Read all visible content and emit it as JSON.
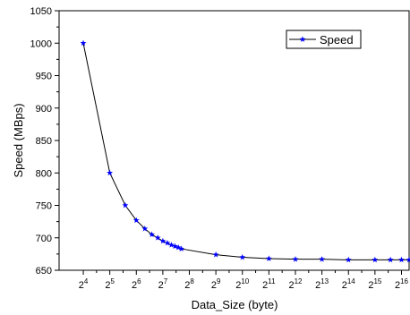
{
  "chart_data": {
    "type": "line",
    "xlabel": "Data_Size (byte)",
    "ylabel": "Speed (MBps)",
    "x_scale": "log2",
    "xlim": [
      8.5,
      80000
    ],
    "ylim": [
      650,
      1050
    ],
    "x_ticks": [
      {
        "value": 16,
        "base": "2",
        "exp": "4"
      },
      {
        "value": 32,
        "base": "2",
        "exp": "5"
      },
      {
        "value": 64,
        "base": "2",
        "exp": "6"
      },
      {
        "value": 128,
        "base": "2",
        "exp": "7"
      },
      {
        "value": 256,
        "base": "2",
        "exp": "8"
      },
      {
        "value": 512,
        "base": "2",
        "exp": "9"
      },
      {
        "value": 1024,
        "base": "2",
        "exp": "10"
      },
      {
        "value": 2048,
        "base": "2",
        "exp": "11"
      },
      {
        "value": 4096,
        "base": "2",
        "exp": "12"
      },
      {
        "value": 8192,
        "base": "2",
        "exp": "13"
      },
      {
        "value": 16384,
        "base": "2",
        "exp": "14"
      },
      {
        "value": 32768,
        "base": "2",
        "exp": "15"
      },
      {
        "value": 65536,
        "base": "2",
        "exp": "16"
      }
    ],
    "y_ticks": [
      650,
      700,
      750,
      800,
      850,
      900,
      950,
      1000,
      1050
    ],
    "grid": false,
    "legend": {
      "position": "top-right"
    },
    "series": [
      {
        "name": "Speed",
        "color": "#0000ff",
        "line_color": "#000000",
        "marker": "star",
        "points": [
          {
            "x": 16,
            "y": 1000
          },
          {
            "x": 32,
            "y": 800
          },
          {
            "x": 48,
            "y": 750
          },
          {
            "x": 64,
            "y": 727
          },
          {
            "x": 80,
            "y": 714
          },
          {
            "x": 96,
            "y": 705
          },
          {
            "x": 112,
            "y": 700
          },
          {
            "x": 128,
            "y": 695
          },
          {
            "x": 144,
            "y": 692
          },
          {
            "x": 160,
            "y": 689
          },
          {
            "x": 176,
            "y": 687
          },
          {
            "x": 192,
            "y": 685
          },
          {
            "x": 208,
            "y": 683
          },
          {
            "x": 512,
            "y": 674
          },
          {
            "x": 1024,
            "y": 670
          },
          {
            "x": 2048,
            "y": 668
          },
          {
            "x": 4096,
            "y": 667
          },
          {
            "x": 8192,
            "y": 667
          },
          {
            "x": 16384,
            "y": 666
          },
          {
            "x": 32768,
            "y": 666
          },
          {
            "x": 49152,
            "y": 666
          },
          {
            "x": 65536,
            "y": 666
          },
          {
            "x": 80000,
            "y": 666
          }
        ]
      }
    ]
  }
}
